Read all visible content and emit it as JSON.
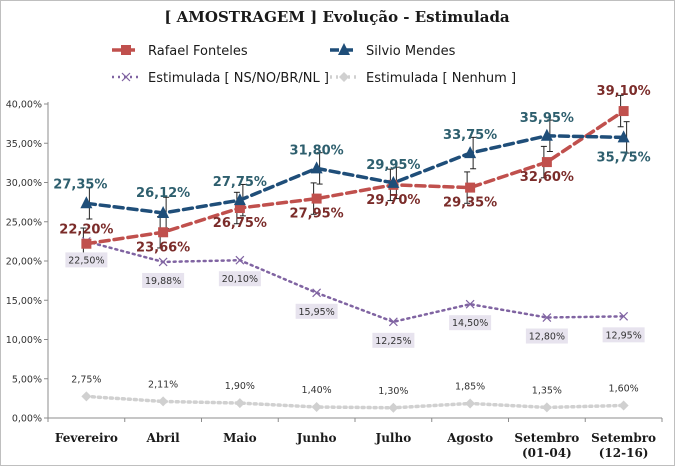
{
  "colors": {
    "rafael": "#c0504d",
    "rafael_label": "#7b2c2a",
    "silvio": "#1f4e79",
    "silvio_label": "#2e5f6e",
    "ns": "#8064a2",
    "nenhum": "#d0d0d0",
    "label_box": "#e7e3ee"
  },
  "chart_data": {
    "type": "line",
    "title": "[ AMOSTRAGEM ] Evolução - Estimulada",
    "xlabel": "",
    "ylabel": "",
    "ylim": [
      0,
      40
    ],
    "yticks": [
      0,
      5,
      10,
      15,
      20,
      25,
      30,
      35,
      40
    ],
    "ytick_labels": [
      "0,00%",
      "5,00%",
      "10,00%",
      "15,00%",
      "20,00%",
      "25,00%",
      "30,00%",
      "35,00%",
      "40,00%"
    ],
    "categories": [
      "Fevereiro",
      "Abril",
      "Maio",
      "Junho",
      "Julho",
      "Agosto",
      "Setembro (01-04)",
      "Setembro (12-16)"
    ],
    "category_lines": [
      [
        "Fevereiro"
      ],
      [
        "Abril"
      ],
      [
        "Maio"
      ],
      [
        "Junho"
      ],
      [
        "Julho"
      ],
      [
        "Agosto"
      ],
      [
        "Setembro",
        "(01-04)"
      ],
      [
        "Setembro",
        "(12-16)"
      ]
    ],
    "legend_position": "top",
    "grid": false,
    "series": [
      {
        "name": "Rafael Fonteles",
        "marker": "square",
        "values": [
          22.2,
          23.66,
          26.75,
          27.95,
          29.7,
          29.35,
          32.6,
          39.1
        ],
        "labels": [
          "22,20%",
          "23,66%",
          "26,75%",
          "27,95%",
          "29,70%",
          "29,35%",
          "32,60%",
          "39,10%"
        ]
      },
      {
        "name": "Silvio Mendes",
        "marker": "triangle",
        "values": [
          27.35,
          26.12,
          27.75,
          31.8,
          29.95,
          33.75,
          35.95,
          35.75
        ],
        "labels": [
          "27,35%",
          "26,12%",
          "27,75%",
          "31,80%",
          "29,95%",
          "33,75%",
          "35,95%",
          "35,75%"
        ]
      },
      {
        "name": "Estimulada [ NS/NO/BR/NL ]",
        "marker": "x",
        "values": [
          22.5,
          19.88,
          20.1,
          15.95,
          12.25,
          14.5,
          12.8,
          12.95
        ],
        "labels": [
          "22,50%",
          "19,88%",
          "20,10%",
          "15,95%",
          "12,25%",
          "14,50%",
          "12,80%",
          "12,95%"
        ]
      },
      {
        "name": "Estimulada [ Nenhum ]",
        "marker": "diamond",
        "values": [
          2.75,
          2.11,
          1.9,
          1.4,
          1.3,
          1.85,
          1.35,
          1.6
        ],
        "labels": [
          "2,75%",
          "2,11%",
          "1,90%",
          "1,40%",
          "1,30%",
          "1,85%",
          "1,35%",
          "1,60%"
        ]
      }
    ]
  }
}
